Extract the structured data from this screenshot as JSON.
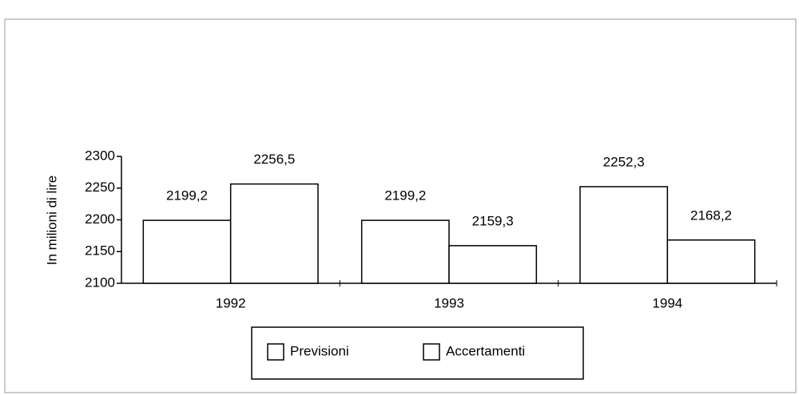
{
  "chart_data": {
    "type": "bar",
    "y_axis_label": "In milioni di lire",
    "categories": [
      "1992",
      "1993",
      "1994"
    ],
    "series": [
      {
        "name": "Previsioni",
        "color": "#ffffff",
        "values": [
          2199.2,
          2199.2,
          2252.3
        ],
        "value_labels": [
          "2199,2",
          "2199,2",
          "2252,3"
        ]
      },
      {
        "name": "Accertamenti",
        "color": "#ffffff",
        "values": [
          2256.5,
          2159.3,
          2168.2
        ],
        "value_labels": [
          "2256,5",
          "2159,3",
          "2168,2"
        ]
      }
    ],
    "ylim": [
      2100,
      2300
    ],
    "yticks": [
      2100,
      2150,
      2200,
      2250,
      2300
    ],
    "legend": "bottom",
    "grid": false
  }
}
